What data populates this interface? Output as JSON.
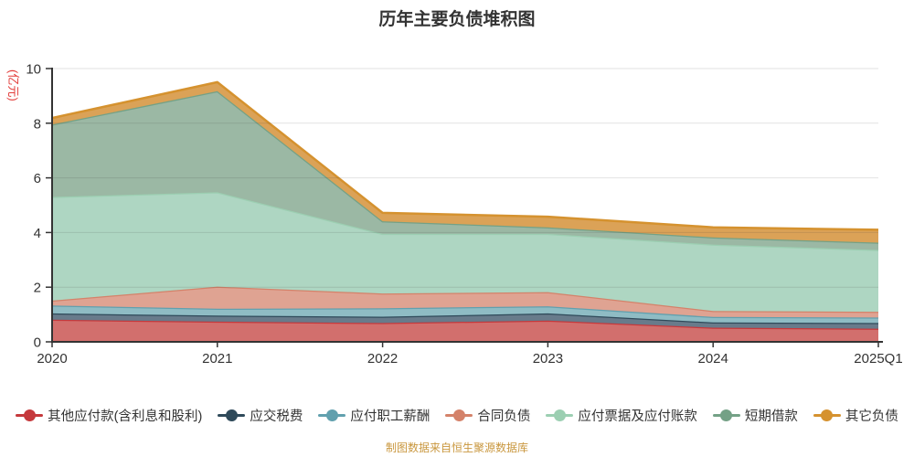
{
  "title": "历年主要负债堆积图",
  "y_axis_name": "(亿元)",
  "footer": "制图数据来自恒生聚源数据库",
  "colors": {
    "title_text": "#333333",
    "axis": "#333333",
    "axis_label": "#333333",
    "y_axis_name": "#e23c39",
    "gridline": "rgba(60,60,60,0.15)",
    "footer_text": "#c9973e",
    "background": "#ffffff"
  },
  "chart_data": {
    "type": "area",
    "stacked": true,
    "title": "历年主要负债堆积图",
    "ylabel": "(亿元)",
    "ylim": [
      0,
      10
    ],
    "y_ticks": [
      0,
      2,
      4,
      6,
      8,
      10
    ],
    "grid": true,
    "legend_position": "bottom",
    "categories": [
      "2020",
      "2021",
      "2022",
      "2023",
      "2024",
      "2025Q1"
    ],
    "series": [
      {
        "name": "其他应付款(含利息和股利)",
        "line_color": "#c5393c",
        "area_color": "#d26f6d",
        "values": [
          0.81,
          0.74,
          0.69,
          0.78,
          0.52,
          0.48
        ]
      },
      {
        "name": "应交税费",
        "line_color": "#2f4a5a",
        "area_color": "#687b8b",
        "values": [
          0.23,
          0.22,
          0.23,
          0.26,
          0.19,
          0.21
        ]
      },
      {
        "name": "应付职工薪酬",
        "line_color": "#61a0ae",
        "area_color": "#8fbcc4",
        "values": [
          0.29,
          0.25,
          0.31,
          0.26,
          0.2,
          0.2
        ]
      },
      {
        "name": "合同负债",
        "line_color": "#d4826a",
        "area_color": "#dfa392",
        "values": [
          0.18,
          0.81,
          0.54,
          0.52,
          0.22,
          0.21
        ]
      },
      {
        "name": "应付票据及应付账款",
        "line_color": "#9ccfb2",
        "area_color": "#aed6c2",
        "values": [
          3.79,
          3.45,
          2.18,
          2.13,
          2.43,
          2.26
        ]
      },
      {
        "name": "短期借款",
        "line_color": "#74a186",
        "area_color": "#9bb8a4",
        "values": [
          2.65,
          3.7,
          0.46,
          0.24,
          0.26,
          0.27
        ]
      },
      {
        "name": "其它负债",
        "line_color": "#d5922f",
        "area_color": "#dba257",
        "values": [
          0.24,
          0.33,
          0.31,
          0.39,
          0.37,
          0.47
        ]
      }
    ]
  }
}
